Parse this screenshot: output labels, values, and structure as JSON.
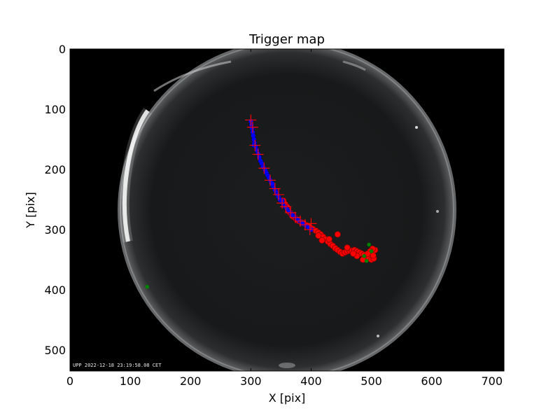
{
  "chart_data": {
    "type": "scatter",
    "title": "Trigger map",
    "xlabel": "X [pix]",
    "ylabel": "Y [pix]",
    "xlim": [
      0,
      720
    ],
    "ylim": [
      0,
      535
    ],
    "y_inverted": true,
    "grid": false,
    "legend": "none",
    "xticks": [
      0,
      100,
      200,
      300,
      400,
      500,
      600,
      700
    ],
    "yticks": [
      0,
      100,
      200,
      300,
      400,
      500
    ],
    "background": "all-sky camera image (fisheye), black with grey circular sky, bright edge lights on the left",
    "image_timestamp": "UPP 2022-12-18 23:19:58.08 CET",
    "colors": {
      "red": "#ff0000",
      "blue": "#0000ff",
      "green": "#008000",
      "plus": "#ff0000"
    },
    "series": [
      {
        "marker": "circle-red",
        "points": [
          [
            354,
            252
          ],
          [
            357,
            258
          ],
          [
            360,
            262
          ],
          [
            362,
            268
          ],
          [
            365,
            272
          ],
          [
            368,
            276
          ],
          [
            371,
            279
          ],
          [
            374,
            281
          ],
          [
            377,
            284
          ],
          [
            380,
            286
          ],
          [
            384,
            288
          ],
          [
            388,
            290
          ],
          [
            393,
            293
          ],
          [
            398,
            296
          ],
          [
            403,
            299
          ],
          [
            408,
            302
          ],
          [
            412,
            305
          ],
          [
            416,
            308
          ],
          [
            420,
            312
          ],
          [
            424,
            316
          ],
          [
            428,
            320
          ],
          [
            432,
            324
          ],
          [
            436,
            327
          ],
          [
            440,
            331
          ],
          [
            444,
            334
          ],
          [
            448,
            337
          ],
          [
            452,
            340
          ],
          [
            456,
            338
          ],
          [
            460,
            336
          ],
          [
            464,
            335
          ],
          [
            468,
            335
          ],
          [
            472,
            334
          ],
          [
            476,
            336
          ],
          [
            480,
            338
          ],
          [
            484,
            340
          ],
          [
            488,
            342
          ],
          [
            492,
            345
          ],
          [
            496,
            348
          ],
          [
            500,
            350
          ],
          [
            504,
            348
          ],
          [
            506,
            334
          ],
          [
            502,
            332
          ],
          [
            498,
            336
          ],
          [
            494,
            340
          ],
          [
            486,
            350
          ],
          [
            476,
            344
          ],
          [
            444,
            308
          ],
          [
            430,
            316
          ],
          [
            418,
            318
          ],
          [
            412,
            310
          ],
          [
            460,
            330
          ],
          [
            470,
            340
          ],
          [
            503,
            343
          ]
        ]
      },
      {
        "marker": "circle-blue",
        "points": [
          [
            300,
            120
          ],
          [
            301,
            126
          ],
          [
            302,
            132
          ],
          [
            303,
            138
          ],
          [
            304,
            144
          ],
          [
            305,
            150
          ],
          [
            306,
            156
          ],
          [
            308,
            162
          ],
          [
            310,
            168
          ],
          [
            312,
            174
          ],
          [
            314,
            180
          ],
          [
            316,
            186
          ],
          [
            318,
            190
          ],
          [
            320,
            194
          ],
          [
            322,
            198
          ],
          [
            324,
            202
          ],
          [
            326,
            206
          ],
          [
            328,
            210
          ],
          [
            330,
            214
          ],
          [
            332,
            218
          ],
          [
            334,
            222
          ],
          [
            336,
            226
          ],
          [
            338,
            230
          ],
          [
            340,
            234
          ],
          [
            342,
            238
          ],
          [
            344,
            242
          ],
          [
            346,
            246
          ],
          [
            348,
            250
          ],
          [
            351,
            254
          ],
          [
            354,
            258
          ],
          [
            357,
            262
          ],
          [
            360,
            266
          ],
          [
            364,
            270
          ],
          [
            368,
            274
          ],
          [
            372,
            278
          ],
          [
            376,
            282
          ],
          [
            380,
            285
          ],
          [
            384,
            288
          ],
          [
            388,
            291
          ],
          [
            392,
            294
          ],
          [
            396,
            297
          ],
          [
            400,
            300
          ],
          [
            305,
            160
          ],
          [
            320,
            196
          ],
          [
            336,
            224
          ],
          [
            352,
            252
          ],
          [
            368,
            276
          ],
          [
            386,
            290
          ]
        ]
      },
      {
        "marker": "plus-red",
        "points": [
          [
            300,
            118
          ],
          [
            303,
            130
          ],
          [
            307,
            160
          ],
          [
            312,
            175
          ],
          [
            322,
            198
          ],
          [
            332,
            218
          ],
          [
            340,
            232
          ],
          [
            346,
            242
          ],
          [
            352,
            256
          ],
          [
            358,
            262
          ],
          [
            366,
            272
          ],
          [
            374,
            280
          ],
          [
            382,
            286
          ],
          [
            390,
            292
          ],
          [
            398,
            300
          ],
          [
            400,
            290
          ]
        ]
      },
      {
        "marker": "circle-green",
        "points": [
          [
            128,
            395
          ],
          [
            496,
            325
          ],
          [
            488,
            344
          ],
          [
            500,
            336
          ],
          [
            492,
            352
          ]
        ]
      }
    ]
  }
}
